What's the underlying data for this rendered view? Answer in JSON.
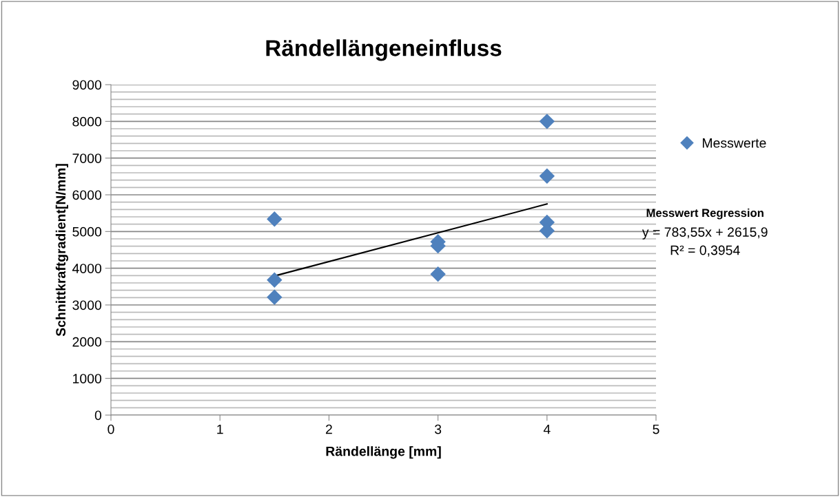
{
  "chart_data": {
    "type": "scatter",
    "title": "Rändellängeneinfluss",
    "xlabel": "Rändellänge [mm]",
    "ylabel": "Schnittkraftgradient[N/mm]",
    "series": [
      {
        "name": "Messwerte",
        "color": "#4f81bd",
        "marker": "diamond",
        "x": [
          1.5,
          1.5,
          1.5,
          3,
          3,
          3,
          4,
          4,
          4,
          4
        ],
        "values": [
          5340,
          3680,
          3210,
          4720,
          4610,
          3840,
          8000,
          6510,
          5250,
          5020
        ]
      },
      {
        "type": "line",
        "color": "#000000",
        "marker": "none",
        "x": [
          1.5,
          4
        ],
        "values": [
          3790,
          5750
        ]
      }
    ],
    "annotations": [
      "Messwert Regression",
      "y = 783,55x + 2615,9",
      "R² = 0,3954"
    ],
    "xlim": [
      0,
      5
    ],
    "xticks": [
      0,
      1,
      2,
      3,
      4,
      5
    ],
    "ylim": [
      0,
      9000
    ],
    "yticks": [
      0,
      {
        "value": 200,
        "label": null
      },
      {
        "value": 400,
        "label": null
      },
      {
        "value": 600,
        "label": null
      },
      {
        "value": 800,
        "label": null
      },
      1000,
      {
        "value": 1200,
        "label": null
      },
      {
        "value": 1400,
        "label": null
      },
      {
        "value": 1600,
        "label": null
      },
      {
        "value": 1800,
        "label": null
      },
      2000,
      {
        "value": 2200,
        "label": null
      },
      {
        "value": 2400,
        "label": null
      },
      {
        "value": 2600,
        "label": null
      },
      {
        "value": 2800,
        "label": null
      },
      3000,
      {
        "value": 3200,
        "label": null
      },
      {
        "value": 3400,
        "label": null
      },
      {
        "value": 3600,
        "label": null
      },
      {
        "value": 3800,
        "label": null
      },
      4000,
      {
        "value": 4200,
        "label": null
      },
      {
        "value": 4400,
        "label": null
      },
      {
        "value": 4600,
        "label": null
      },
      {
        "value": 4800,
        "label": null
      },
      5000,
      {
        "value": 5200,
        "label": null
      },
      {
        "value": 5400,
        "label": null
      },
      {
        "value": 5600,
        "label": null
      },
      {
        "value": 5800,
        "label": null
      },
      6000,
      {
        "value": 6200,
        "label": null
      },
      {
        "value": 6400,
        "label": null
      },
      {
        "value": 6600,
        "label": null
      },
      {
        "value": 6800,
        "label": null
      },
      7000,
      {
        "value": 7200,
        "label": null
      },
      {
        "value": 7400,
        "label": null
      },
      {
        "value": 7600,
        "label": null
      },
      {
        "value": 7800,
        "label": null
      },
      8000,
      {
        "value": 8200,
        "label": null
      },
      {
        "value": 8400,
        "label": null
      },
      {
        "value": 8600,
        "label": null
      },
      {
        "value": 8800,
        "label": null
      },
      9000
    ],
    "grid": "y",
    "legend": "right"
  }
}
